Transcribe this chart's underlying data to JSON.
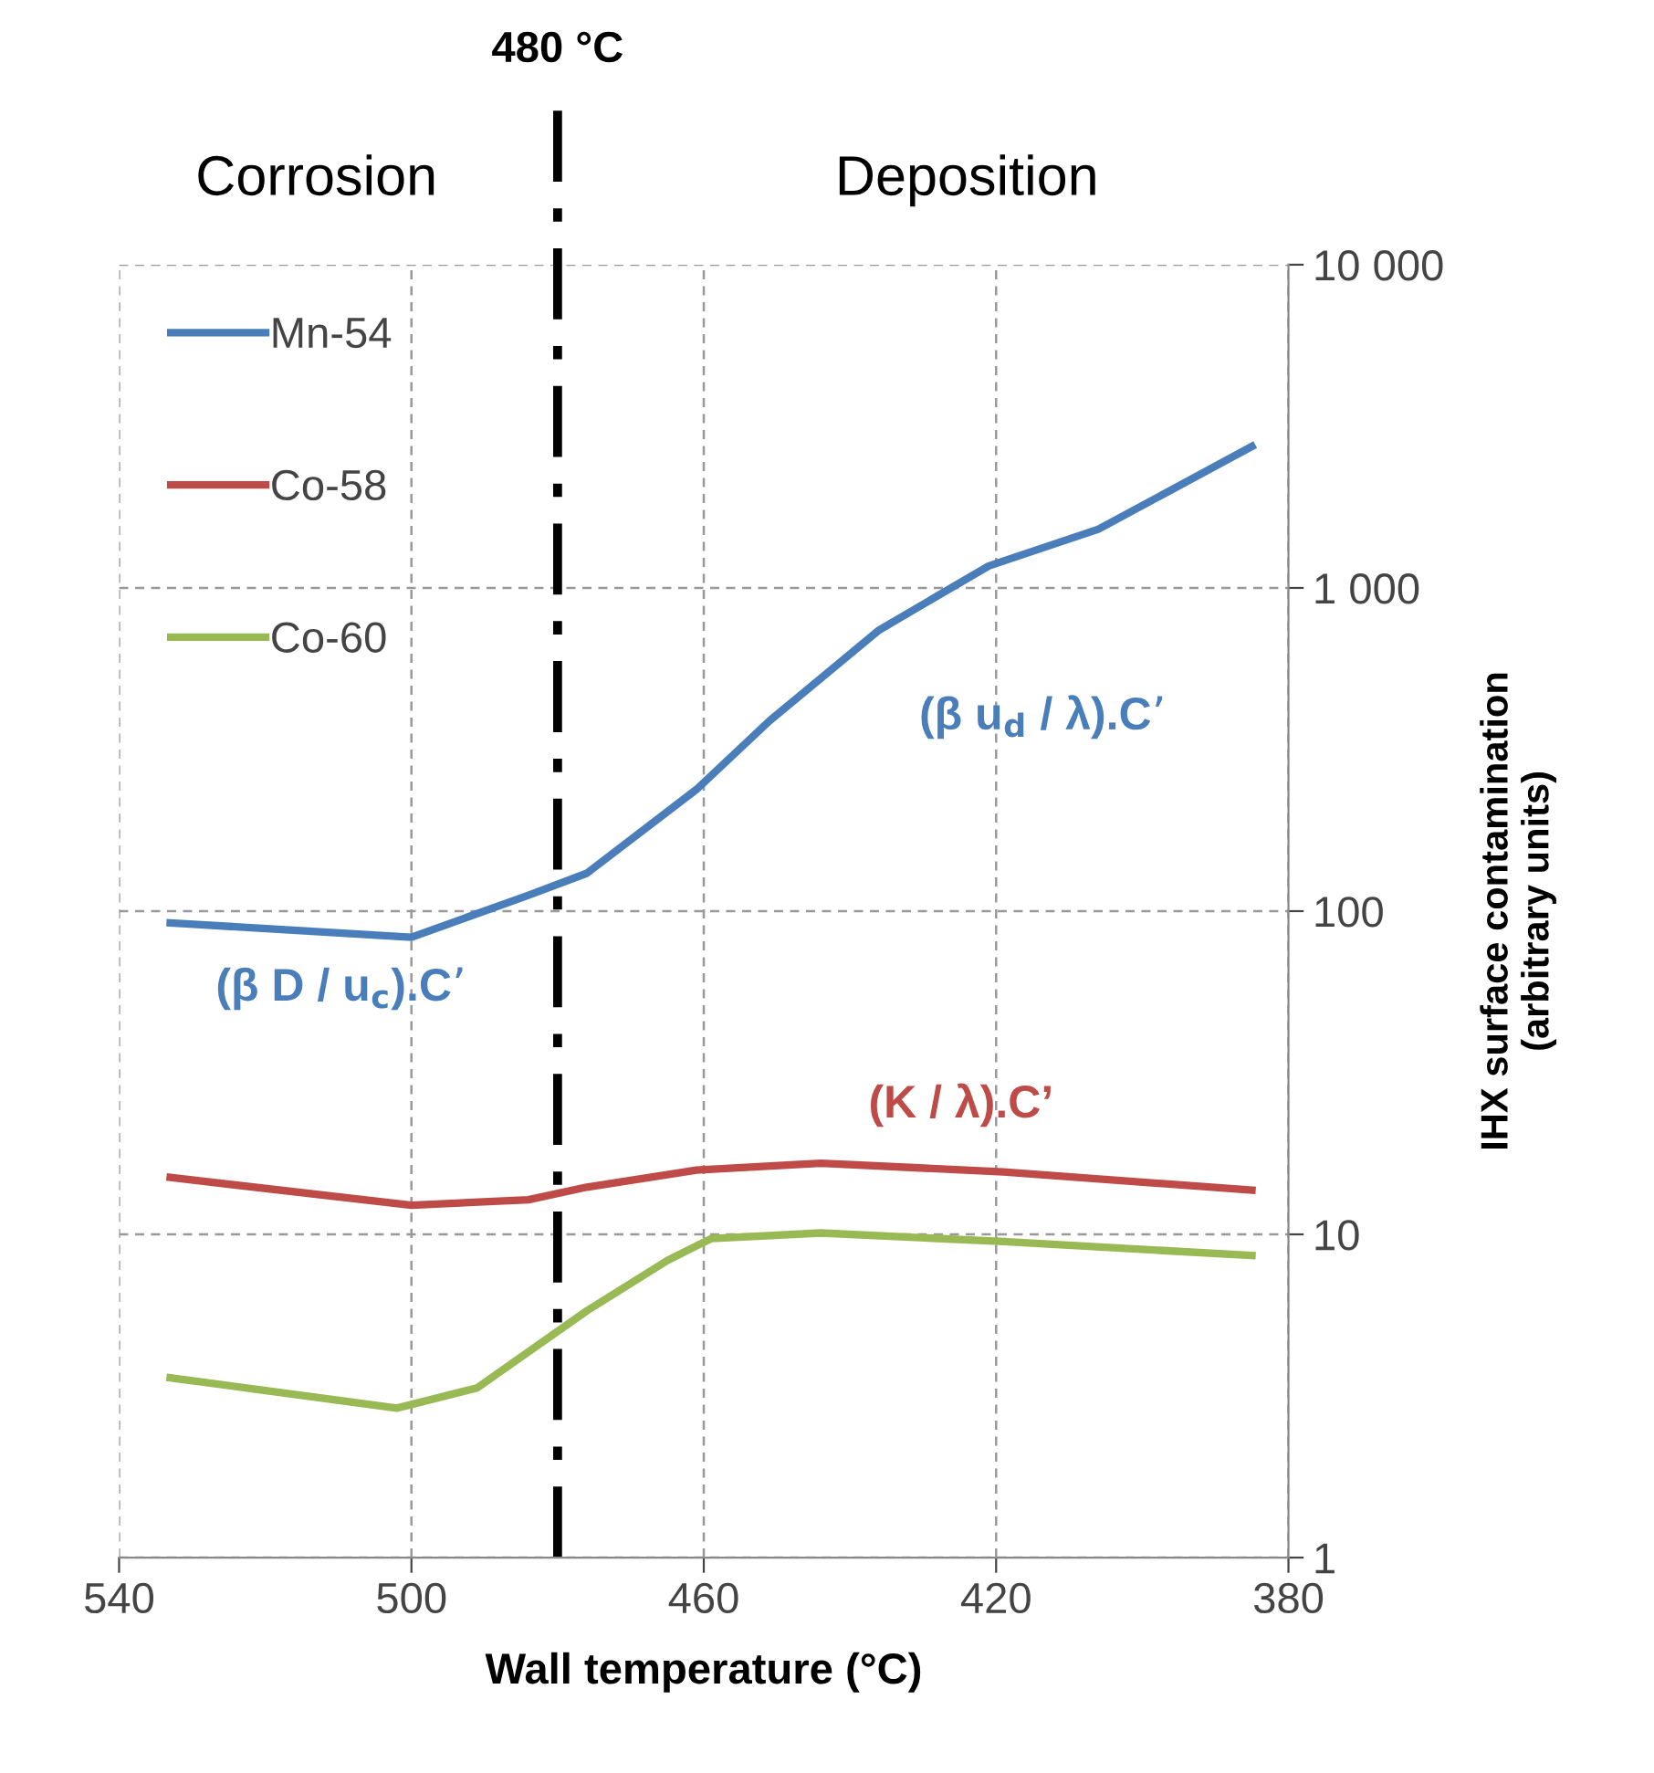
{
  "chart_data": {
    "type": "line",
    "xlabel": "Wall temperature (°C)",
    "ylabel": "IHX surface contamination\n(arbitrary units)",
    "xlim": [
      540,
      380
    ],
    "xticks": [
      540,
      500,
      460,
      420,
      380
    ],
    "ylim": [
      1,
      10000
    ],
    "yticks": [
      1,
      10,
      100,
      {
        "value": 1000,
        "label": "1 000"
      },
      {
        "value": 10000,
        "label": "10 000"
      }
    ],
    "log": "y",
    "grid": true,
    "legend": "top left",
    "line_style": "solid",
    "marker": "none",
    "x": [
      533,
      500,
      484,
      476,
      461,
      451,
      436,
      421,
      406,
      385
    ],
    "series": [
      {
        "name": "Mn-54",
        "color": "#4a7ebb",
        "values": [
          92,
          83,
          112,
          131,
          238,
          388,
          741,
          1170,
          1520,
          2740
        ]
      },
      {
        "name": "Co-58",
        "color": "#be4b48",
        "x": [
          533,
          500,
          484,
          476,
          461,
          444,
          419,
          385
        ],
        "values": [
          15,
          12.3,
          12.8,
          14,
          15.8,
          16.6,
          15.6,
          13.7
        ]
      },
      {
        "name": "Co-60",
        "color": "#98b954",
        "x": [
          533,
          502,
          491,
          476,
          465,
          459,
          444,
          419,
          385
        ],
        "values": [
          3.6,
          2.9,
          3.35,
          5.8,
          8.3,
          9.7,
          10.1,
          9.5,
          8.6
        ]
      }
    ],
    "ref_lines": [
      {
        "axis": "x",
        "value": 480,
        "label": "480 °C",
        "color": "#000000",
        "line_style": "dashdot"
      }
    ],
    "annotations": [
      "Corrosion",
      "Deposition",
      "(β u$_{d}$ / λ).C’",
      "(β D / u$_{c}$).C’",
      "(K / λ).C’"
    ]
  }
}
